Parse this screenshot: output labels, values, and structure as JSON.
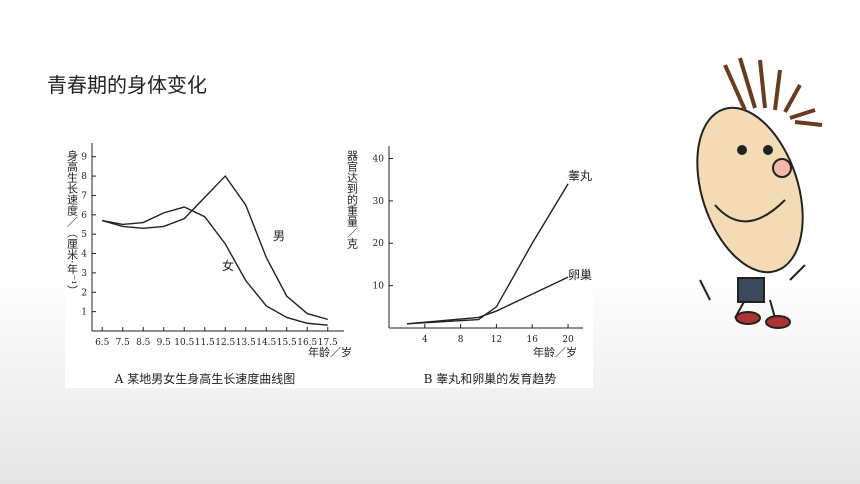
{
  "slide_title": "青春期的身体变化",
  "chart_data": [
    {
      "type": "line",
      "caption": "A 某地男女生身高生长速度曲线图",
      "y_label": "身高生长速度／（厘米·年⁻¹）",
      "x_label": "年龄／岁",
      "x": [
        6.5,
        7.5,
        8.5,
        9.5,
        10.5,
        11.5,
        12.5,
        13.5,
        14.5,
        15.5,
        16.5,
        17.5
      ],
      "xlim": [
        6,
        18
      ],
      "xticks": [
        6.5,
        7.5,
        8.5,
        9.5,
        10.5,
        11.5,
        12.5,
        13.5,
        14.5,
        15.5,
        16.5,
        17.5
      ],
      "ylim": [
        0,
        9.5
      ],
      "yticks": [
        1,
        2,
        3,
        4,
        5,
        6,
        7,
        8,
        9
      ],
      "series": [
        {
          "name": "男",
          "color": "#222222",
          "values": [
            5.7,
            5.4,
            5.3,
            5.4,
            5.8,
            6.9,
            8.0,
            6.5,
            3.8,
            1.8,
            0.9,
            0.6
          ]
        },
        {
          "name": "女",
          "color": "#222222",
          "values": [
            5.7,
            5.5,
            5.6,
            6.1,
            6.4,
            5.9,
            4.5,
            2.6,
            1.3,
            0.7,
            0.4,
            0.3
          ]
        }
      ]
    },
    {
      "type": "line",
      "caption": "B 睾丸和卵巢的发育趋势",
      "y_label": "器官达到的重量／克",
      "x_label": "年龄／岁",
      "x": [
        2,
        10,
        12,
        16,
        20
      ],
      "xlim": [
        0,
        21
      ],
      "xticks": [
        4,
        8,
        12,
        16,
        20
      ],
      "ylim": [
        0,
        42
      ],
      "yticks": [
        10,
        20,
        30,
        40
      ],
      "series": [
        {
          "name": "睾丸",
          "color": "#222222",
          "values": [
            1,
            2,
            5,
            20,
            34
          ]
        },
        {
          "name": "卵巢",
          "color": "#222222",
          "values": [
            1,
            2.5,
            4,
            8,
            12
          ]
        }
      ]
    }
  ]
}
